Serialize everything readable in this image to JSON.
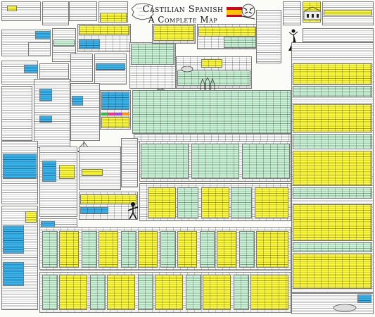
{
  "poster": {
    "title_line1": "Castilian Spanish",
    "title_line2": "A Complete Map",
    "flag_colors": {
      "red": "#c60b1e",
      "yellow": "#ffc400"
    },
    "highlight_colors": {
      "yellow": "#fffb3a",
      "green": "#c9f5d6",
      "blue": "#39b4ee"
    },
    "illustrations": [
      "map-of-spain",
      "tiger-drawing",
      "building-drawing",
      "dancer-drawing",
      "castle-drawing",
      "bull-silhouette",
      "cathedral-drawing",
      "ship-drawing",
      "figure-drawing",
      "lizard-drawing"
    ]
  }
}
